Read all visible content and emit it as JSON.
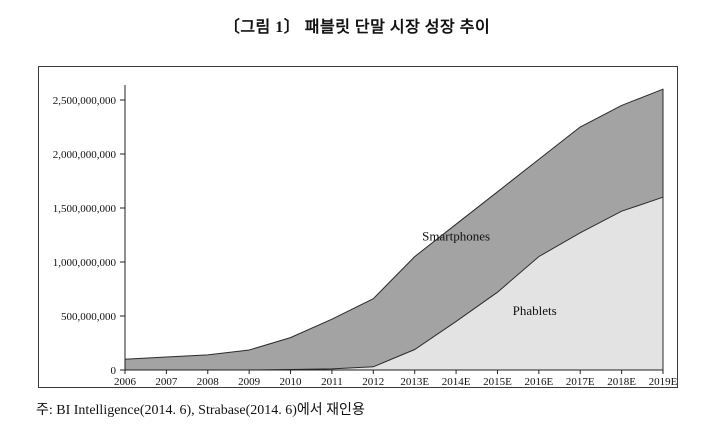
{
  "figure": {
    "title": "〔그림 1〕 패블릿 단말 시장 성장 추이",
    "source_note": "주: BI Intelligence(2014. 6), Strabase(2014. 6)에서 재인용"
  },
  "chart_data": {
    "type": "area",
    "stacked": true,
    "title": "",
    "xlabel": "",
    "ylabel": "",
    "grid": false,
    "legend": "in-plot-labels",
    "x": [
      "2006",
      "2007",
      "2008",
      "2009",
      "2010",
      "2011",
      "2012",
      "2013E",
      "2014E",
      "2015E",
      "2016E",
      "2017E",
      "2018E",
      "2019E"
    ],
    "series": [
      {
        "name": "Phablets",
        "color": "#e3e3e3",
        "values": [
          0,
          0,
          0,
          0,
          5000000,
          10000000,
          30000000,
          190000000,
          450000000,
          720000000,
          1050000000,
          1270000000,
          1470000000,
          1600000000
        ]
      },
      {
        "name": "Smartphones",
        "color": "#a3a3a3",
        "values": [
          100000000,
          120000000,
          140000000,
          185000000,
          295000000,
          460000000,
          630000000,
          860000000,
          900000000,
          930000000,
          900000000,
          980000000,
          980000000,
          1000000000
        ]
      }
    ],
    "y_ticks": [
      0,
      500000000,
      1000000000,
      1500000000,
      2000000000,
      2500000000
    ],
    "ylim": [
      0,
      2500000000
    ],
    "annotations": [
      {
        "text": "Smartphones",
        "x_index": 8.0,
        "value": 1200000000
      },
      {
        "text": "Phablets",
        "x_index": 9.9,
        "value": 510000000
      }
    ],
    "axis_color": "#222222",
    "outline_color": "#2b2b2b"
  }
}
